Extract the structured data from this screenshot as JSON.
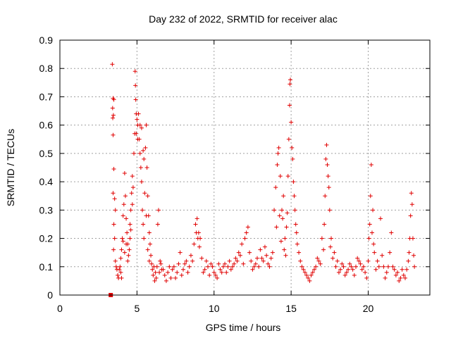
{
  "chart_data": {
    "type": "scatter",
    "title": "Day 232 of 2022, SRMTID for receiver alac",
    "xlabel": "GPS time / hours",
    "ylabel": "SRMTID / TECUs",
    "xlim": [
      0,
      24
    ],
    "ylim": [
      0,
      0.9
    ],
    "x_ticks": [
      0,
      5,
      10,
      15,
      20
    ],
    "x_tick_labels": [
      "0",
      "5",
      "10",
      "15",
      "20"
    ],
    "y_ticks": [
      0,
      0.1,
      0.2,
      0.3,
      0.4,
      0.5,
      0.6,
      0.7,
      0.8,
      0.9
    ],
    "y_tick_labels": [
      "0",
      "0.1",
      "0.2",
      "0.3",
      "0.4",
      "0.5",
      "0.6",
      "0.7",
      "0.8",
      "0.9"
    ],
    "grid": true,
    "marker": "+",
    "color": "#e00000",
    "series": [
      {
        "name": "SRMTID",
        "points": [
          [
            3.4,
            0.815
          ],
          [
            3.45,
            0.695
          ],
          [
            3.5,
            0.69
          ],
          [
            3.42,
            0.66
          ],
          [
            3.47,
            0.635
          ],
          [
            3.43,
            0.625
          ],
          [
            3.45,
            0.565
          ],
          [
            3.5,
            0.445
          ],
          [
            3.45,
            0.36
          ],
          [
            3.55,
            0.34
          ],
          [
            3.6,
            0.3
          ],
          [
            3.5,
            0.25
          ],
          [
            3.55,
            0.2
          ],
          [
            3.48,
            0.16
          ],
          [
            3.6,
            0.12
          ],
          [
            3.65,
            0.1
          ],
          [
            3.7,
            0.09
          ],
          [
            3.75,
            0.07
          ],
          [
            3.8,
            0.06
          ],
          [
            3.9,
            0.1
          ],
          [
            3.95,
            0.13
          ],
          [
            4.0,
            0.16
          ],
          [
            4.05,
            0.2
          ],
          [
            4.1,
            0.28
          ],
          [
            4.15,
            0.32
          ],
          [
            4.2,
            0.43
          ],
          [
            4.25,
            0.35
          ],
          [
            4.3,
            0.27
          ],
          [
            4.35,
            0.22
          ],
          [
            4.4,
            0.18
          ],
          [
            4.45,
            0.14
          ],
          [
            4.5,
            0.16
          ],
          [
            4.55,
            0.25
          ],
          [
            4.6,
            0.3
          ],
          [
            4.65,
            0.36
          ],
          [
            4.7,
            0.42
          ],
          [
            4.75,
            0.38
          ],
          [
            4.8,
            0.5
          ],
          [
            4.85,
            0.57
          ],
          [
            4.88,
            0.79
          ],
          [
            4.9,
            0.74
          ],
          [
            4.92,
            0.69
          ],
          [
            4.95,
            0.64
          ],
          [
            5.0,
            0.62
          ],
          [
            5.05,
            0.6
          ],
          [
            5.1,
            0.64
          ],
          [
            5.15,
            0.55
          ],
          [
            5.2,
            0.5
          ],
          [
            5.25,
            0.45
          ],
          [
            5.3,
            0.4
          ],
          [
            5.35,
            0.3
          ],
          [
            5.4,
            0.25
          ],
          [
            5.45,
            0.2
          ],
          [
            5.5,
            0.36
          ],
          [
            5.55,
            0.52
          ],
          [
            5.6,
            0.6
          ],
          [
            5.65,
            0.45
          ],
          [
            5.7,
            0.35
          ],
          [
            5.75,
            0.28
          ],
          [
            5.8,
            0.22
          ],
          [
            5.85,
            0.18
          ],
          [
            5.9,
            0.14
          ],
          [
            5.95,
            0.11
          ],
          [
            6.0,
            0.09
          ],
          [
            6.1,
            0.1
          ],
          [
            6.2,
            0.08
          ],
          [
            6.3,
            0.1
          ],
          [
            6.35,
            0.25
          ],
          [
            6.4,
            0.3
          ],
          [
            6.5,
            0.12
          ],
          [
            6.6,
            0.09
          ],
          [
            6.8,
            0.07
          ],
          [
            7.0,
            0.08
          ],
          [
            7.2,
            0.06
          ],
          [
            7.4,
            0.1
          ],
          [
            7.6,
            0.08
          ],
          [
            7.8,
            0.15
          ],
          [
            8.0,
            0.09
          ],
          [
            8.2,
            0.12
          ],
          [
            8.4,
            0.1
          ],
          [
            8.6,
            0.12
          ],
          [
            8.8,
            0.25
          ],
          [
            8.9,
            0.27
          ],
          [
            9.0,
            0.22
          ],
          [
            9.1,
            0.2
          ],
          [
            9.2,
            0.13
          ],
          [
            9.4,
            0.09
          ],
          [
            9.6,
            0.1
          ],
          [
            9.8,
            0.11
          ],
          [
            10.0,
            0.08
          ],
          [
            10.2,
            0.06
          ],
          [
            10.4,
            0.09
          ],
          [
            10.6,
            0.1
          ],
          [
            10.8,
            0.08
          ],
          [
            11.0,
            0.12
          ],
          [
            11.2,
            0.1
          ],
          [
            11.4,
            0.13
          ],
          [
            11.6,
            0.15
          ],
          [
            11.8,
            0.18
          ],
          [
            12.0,
            0.2
          ],
          [
            12.1,
            0.22
          ],
          [
            12.2,
            0.24
          ],
          [
            12.4,
            0.12
          ],
          [
            12.6,
            0.1
          ],
          [
            12.8,
            0.13
          ],
          [
            13.0,
            0.16
          ],
          [
            13.2,
            0.12
          ],
          [
            13.4,
            0.14
          ],
          [
            13.6,
            0.1
          ],
          [
            13.8,
            0.15
          ],
          [
            13.9,
            0.3
          ],
          [
            14.0,
            0.38
          ],
          [
            14.1,
            0.46
          ],
          [
            14.15,
            0.5
          ],
          [
            14.2,
            0.52
          ],
          [
            14.3,
            0.42
          ],
          [
            14.4,
            0.3
          ],
          [
            14.5,
            0.35
          ],
          [
            14.6,
            0.2
          ],
          [
            14.7,
            0.24
          ],
          [
            14.8,
            0.42
          ],
          [
            14.85,
            0.55
          ],
          [
            14.9,
            0.67
          ],
          [
            14.92,
            0.745
          ],
          [
            14.95,
            0.76
          ],
          [
            15.0,
            0.61
          ],
          [
            15.05,
            0.52
          ],
          [
            15.1,
            0.48
          ],
          [
            15.2,
            0.35
          ],
          [
            15.3,
            0.25
          ],
          [
            15.4,
            0.18
          ],
          [
            15.6,
            0.12
          ],
          [
            15.8,
            0.09
          ],
          [
            16.0,
            0.07
          ],
          [
            16.2,
            0.05
          ],
          [
            16.4,
            0.08
          ],
          [
            16.6,
            0.1
          ],
          [
            16.8,
            0.12
          ],
          [
            17.0,
            0.2
          ],
          [
            17.2,
            0.35
          ],
          [
            17.25,
            0.48
          ],
          [
            17.3,
            0.53
          ],
          [
            17.35,
            0.46
          ],
          [
            17.4,
            0.42
          ],
          [
            17.45,
            0.38
          ],
          [
            17.5,
            0.3
          ],
          [
            17.6,
            0.2
          ],
          [
            17.8,
            0.15
          ],
          [
            18.0,
            0.12
          ],
          [
            18.2,
            0.09
          ],
          [
            18.4,
            0.1
          ],
          [
            18.6,
            0.08
          ],
          [
            18.8,
            0.11
          ],
          [
            19.0,
            0.09
          ],
          [
            19.2,
            0.1
          ],
          [
            19.4,
            0.12
          ],
          [
            19.6,
            0.09
          ],
          [
            19.8,
            0.08
          ],
          [
            20.0,
            0.12
          ],
          [
            20.05,
            0.2
          ],
          [
            20.1,
            0.25
          ],
          [
            20.15,
            0.35
          ],
          [
            20.2,
            0.46
          ],
          [
            20.3,
            0.3
          ],
          [
            20.4,
            0.15
          ],
          [
            20.6,
            0.12
          ],
          [
            20.8,
            0.27
          ],
          [
            21.0,
            0.1
          ],
          [
            21.2,
            0.08
          ],
          [
            21.4,
            0.15
          ],
          [
            21.5,
            0.22
          ],
          [
            21.6,
            0.1
          ],
          [
            21.8,
            0.07
          ],
          [
            22.0,
            0.05
          ],
          [
            22.2,
            0.09
          ],
          [
            22.4,
            0.06
          ],
          [
            22.6,
            0.12
          ],
          [
            22.7,
            0.2
          ],
          [
            22.75,
            0.28
          ],
          [
            22.8,
            0.36
          ],
          [
            22.85,
            0.32
          ],
          [
            22.9,
            0.2
          ],
          [
            23.0,
            0.1
          ],
          [
            5.2,
            0.6
          ],
          [
            5.3,
            0.59
          ],
          [
            5.4,
            0.51
          ],
          [
            5.45,
            0.48
          ],
          [
            4.95,
            0.57
          ],
          [
            5.05,
            0.55
          ],
          [
            4.7,
            0.32
          ],
          [
            4.6,
            0.23
          ],
          [
            4.3,
            0.18
          ],
          [
            4.2,
            0.15
          ],
          [
            4.1,
            0.19
          ],
          [
            3.95,
            0.08
          ],
          [
            3.85,
            0.09
          ],
          [
            4.0,
            0.06
          ],
          [
            4.4,
            0.12
          ],
          [
            4.55,
            0.2
          ],
          [
            5.6,
            0.28
          ],
          [
            5.7,
            0.16
          ],
          [
            5.8,
            0.12
          ],
          [
            6.05,
            0.07
          ],
          [
            6.15,
            0.05
          ],
          [
            6.25,
            0.06
          ],
          [
            6.45,
            0.08
          ],
          [
            6.55,
            0.11
          ],
          [
            6.7,
            0.09
          ],
          [
            6.9,
            0.05
          ],
          [
            7.1,
            0.1
          ],
          [
            7.3,
            0.09
          ],
          [
            7.5,
            0.06
          ],
          [
            7.7,
            0.11
          ],
          [
            7.9,
            0.07
          ],
          [
            8.1,
            0.11
          ],
          [
            8.3,
            0.08
          ],
          [
            8.5,
            0.14
          ],
          [
            8.7,
            0.18
          ],
          [
            8.85,
            0.22
          ],
          [
            8.95,
            0.2
          ],
          [
            9.05,
            0.17
          ],
          [
            9.3,
            0.08
          ],
          [
            9.5,
            0.12
          ],
          [
            9.7,
            0.07
          ],
          [
            9.9,
            0.1
          ],
          [
            10.1,
            0.07
          ],
          [
            10.3,
            0.11
          ],
          [
            10.5,
            0.08
          ],
          [
            10.7,
            0.11
          ],
          [
            10.9,
            0.1
          ],
          [
            11.1,
            0.09
          ],
          [
            11.3,
            0.11
          ],
          [
            11.5,
            0.12
          ],
          [
            11.7,
            0.14
          ],
          [
            11.9,
            0.11
          ],
          [
            12.3,
            0.15
          ],
          [
            12.5,
            0.09
          ],
          [
            12.7,
            0.11
          ],
          [
            12.9,
            0.1
          ],
          [
            13.1,
            0.13
          ],
          [
            13.3,
            0.17
          ],
          [
            13.5,
            0.11
          ],
          [
            13.7,
            0.13
          ],
          [
            14.05,
            0.24
          ],
          [
            14.25,
            0.28
          ],
          [
            14.35,
            0.19
          ],
          [
            14.45,
            0.27
          ],
          [
            14.55,
            0.16
          ],
          [
            14.65,
            0.14
          ],
          [
            14.75,
            0.29
          ],
          [
            15.15,
            0.4
          ],
          [
            15.25,
            0.3
          ],
          [
            15.35,
            0.22
          ],
          [
            15.5,
            0.15
          ],
          [
            15.7,
            0.1
          ],
          [
            15.9,
            0.08
          ],
          [
            16.1,
            0.06
          ],
          [
            16.3,
            0.07
          ],
          [
            16.5,
            0.09
          ],
          [
            16.7,
            0.13
          ],
          [
            16.9,
            0.11
          ],
          [
            17.1,
            0.16
          ],
          [
            17.15,
            0.25
          ],
          [
            17.55,
            0.17
          ],
          [
            17.7,
            0.13
          ],
          [
            17.9,
            0.1
          ],
          [
            18.1,
            0.08
          ],
          [
            18.3,
            0.11
          ],
          [
            18.5,
            0.07
          ],
          [
            18.7,
            0.09
          ],
          [
            18.9,
            0.1
          ],
          [
            19.1,
            0.07
          ],
          [
            19.3,
            0.13
          ],
          [
            19.5,
            0.11
          ],
          [
            19.7,
            0.1
          ],
          [
            19.9,
            0.06
          ],
          [
            20.25,
            0.22
          ],
          [
            20.35,
            0.18
          ],
          [
            20.5,
            0.09
          ],
          [
            20.7,
            0.1
          ],
          [
            20.9,
            0.14
          ],
          [
            21.1,
            0.06
          ],
          [
            21.3,
            0.1
          ],
          [
            21.7,
            0.09
          ],
          [
            21.9,
            0.08
          ],
          [
            22.1,
            0.06
          ],
          [
            22.3,
            0.07
          ],
          [
            22.5,
            0.09
          ],
          [
            22.65,
            0.15
          ],
          [
            22.95,
            0.14
          ]
        ]
      },
      {
        "name": "zero-marker",
        "marker": "square",
        "points": [
          [
            3.3,
            0.0
          ]
        ]
      }
    ]
  }
}
